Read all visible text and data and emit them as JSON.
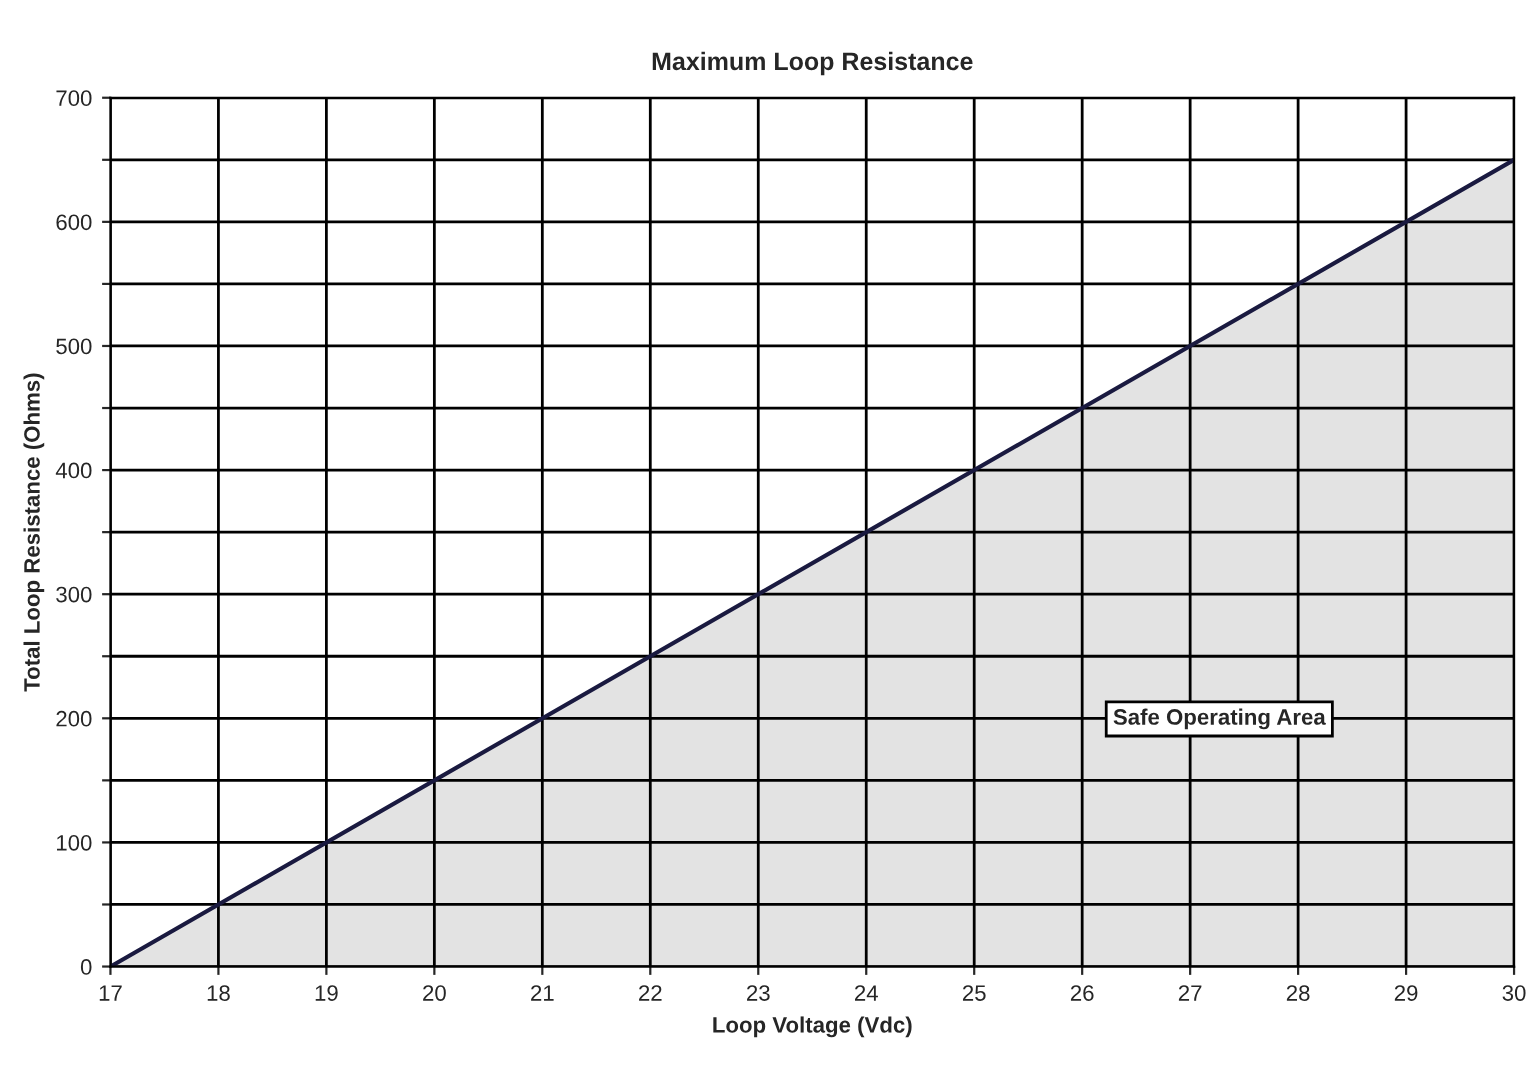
{
  "chart_data": {
    "type": "area",
    "title": "Maximum Loop Resistance",
    "xlabel": "Loop Voltage (Vdc)",
    "ylabel": "Total Loop Resistance (Ohms)",
    "x": [
      17,
      30
    ],
    "series": [
      {
        "color": "#e3e3e3",
        "values": [
          0,
          650
        ]
      }
    ],
    "xlim": [
      17,
      30
    ],
    "xticks": [
      17,
      18,
      19,
      20,
      21,
      22,
      23,
      24,
      25,
      26,
      27,
      28,
      29,
      30
    ],
    "ylim": [
      0,
      700
    ],
    "yticks": [
      0,
      {
        "value": 50,
        "label": null
      },
      100,
      {
        "value": 150,
        "label": null
      },
      200,
      {
        "value": 250,
        "label": null
      },
      300,
      {
        "value": 350,
        "label": null
      },
      400,
      {
        "value": 450,
        "label": null
      },
      500,
      {
        "value": 550,
        "label": null
      },
      600,
      {
        "value": 650,
        "label": null
      },
      700
    ],
    "grid": true,
    "legend": false,
    "annotations": [
      "Safe Operating Area"
    ]
  }
}
